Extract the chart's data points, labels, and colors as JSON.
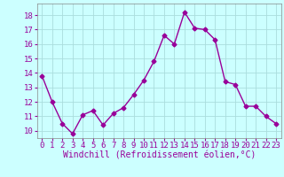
{
  "x": [
    0,
    1,
    2,
    3,
    4,
    5,
    6,
    7,
    8,
    9,
    10,
    11,
    12,
    13,
    14,
    15,
    16,
    17,
    18,
    19,
    20,
    21,
    22,
    23
  ],
  "y": [
    13.8,
    12.0,
    10.5,
    9.8,
    11.1,
    11.4,
    10.4,
    11.2,
    11.6,
    12.5,
    13.5,
    14.8,
    16.6,
    16.0,
    18.2,
    17.1,
    17.0,
    16.3,
    13.4,
    13.2,
    11.7,
    11.7,
    11.0,
    10.5
  ],
  "color": "#990099",
  "bg_color": "#ccffff",
  "grid_color": "#aadddd",
  "xlabel": "Windchill (Refroidissement éolien,°C)",
  "xlim": [
    -0.5,
    23.5
  ],
  "ylim": [
    9.5,
    18.8
  ],
  "yticks": [
    10,
    11,
    12,
    13,
    14,
    15,
    16,
    17,
    18
  ],
  "xticks": [
    0,
    1,
    2,
    3,
    4,
    5,
    6,
    7,
    8,
    9,
    10,
    11,
    12,
    13,
    14,
    15,
    16,
    17,
    18,
    19,
    20,
    21,
    22,
    23
  ],
  "marker": "D",
  "markersize": 2.5,
  "linewidth": 1.0,
  "xlabel_fontsize": 7,
  "tick_fontsize": 6.5
}
